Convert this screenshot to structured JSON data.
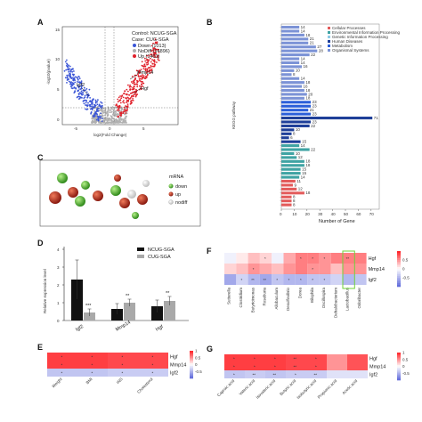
{
  "panel_letters": {
    "A": "A",
    "B": "B",
    "C": "C",
    "D": "D",
    "E": "E",
    "F": "F",
    "G": "G"
  },
  "panelA": {
    "ylabel": "-log10(pvalue)",
    "xlabel": "log2(Fold Change)",
    "legend": {
      "control": "Control: NCUG-SGA",
      "case": "Case:     CUG-SGA",
      "down": "Down (1013)",
      "nodiff": "NoDiff (14896)",
      "up": "Up (1403)"
    },
    "genes": {
      "igf2": "Igf2",
      "mmp14": "Mmp14",
      "hgf": "Hgf"
    },
    "yticks": [
      "0",
      "5",
      "10",
      "15"
    ],
    "xticks": [
      "-5",
      "0",
      "5"
    ],
    "colors": {
      "down": "#3a55d6",
      "nodiff": "#b0b0b0",
      "up": "#e0212b"
    }
  },
  "panelB": {
    "ylabel": "KEGG pathway",
    "xlabel": "Number of Gene",
    "xticks": [
      "0",
      "10",
      "20",
      "30",
      "40",
      "50",
      "60",
      "70"
    ],
    "legend": [
      "Cellular Processes",
      "Environmental Information Processing",
      "Genetic Information Processing",
      "Human Diseases",
      "Metabolism",
      "Organismal Systems"
    ],
    "legend_colors": [
      "#e35b5b",
      "#3fa3a3",
      "#8ecae6",
      "#1f3f99",
      "#2b5fd9",
      "#7c93d6"
    ]
  },
  "chart_data": [
    {
      "type": "bar",
      "title": "",
      "xlabel": "Number of Gene",
      "ylabel": "KEGG pathway",
      "xlim": [
        0,
        75
      ],
      "values": [
        14,
        14,
        18,
        21,
        21,
        27,
        28,
        22,
        14,
        14,
        16,
        10,
        8,
        14,
        18,
        16,
        18,
        20,
        18,
        23,
        23,
        21,
        23,
        71,
        23,
        22,
        10,
        8,
        6,
        15,
        14,
        22,
        10,
        12,
        18,
        18,
        15,
        15,
        14,
        11,
        9,
        12,
        18,
        8,
        8,
        8
      ],
      "colors": [
        "#7c93d6",
        "#7c93d6",
        "#7c93d6",
        "#7c93d6",
        "#7c93d6",
        "#7c93d6",
        "#7c93d6",
        "#7c93d6",
        "#7c93d6",
        "#7c93d6",
        "#7c93d6",
        "#7c93d6",
        "#7c93d6",
        "#7c93d6",
        "#7c93d6",
        "#7c93d6",
        "#7c93d6",
        "#7c93d6",
        "#7c93d6",
        "#2b5fd9",
        "#2b5fd9",
        "#2b5fd9",
        "#2b5fd9",
        "#1f3f99",
        "#1f3f99",
        "#1f3f99",
        "#1f3f99",
        "#1f3f99",
        "#1f3f99",
        "#1f3f99",
        "#3fa3a3",
        "#3fa3a3",
        "#3fa3a3",
        "#3fa3a3",
        "#3fa3a3",
        "#3fa3a3",
        "#3fa3a3",
        "#3fa3a3",
        "#3fa3a3",
        "#e35b5b",
        "#e35b5b",
        "#e35b5b",
        "#e35b5b",
        "#e35b5b",
        "#e35b5b",
        "#e35b5b"
      ]
    },
    {
      "type": "bar",
      "title": "",
      "ylabel": "Relative expression level",
      "categories": [
        "Igf2",
        "Mmp14",
        "Hgf"
      ],
      "ylim": [
        0,
        4
      ],
      "yticks": [
        "0",
        "1",
        "2",
        "3",
        "4"
      ],
      "series": [
        {
          "name": "NCUG-SGA",
          "color": "#111111",
          "values": [
            2.3,
            0.65,
            0.8
          ],
          "errors": [
            1.1,
            0.3,
            0.35
          ]
        },
        {
          "name": "CUG-SGA",
          "color": "#a9a9a9",
          "values": [
            0.45,
            1.0,
            1.1
          ],
          "errors": [
            0.2,
            0.2,
            0.25
          ]
        }
      ],
      "significance": [
        "***",
        "**",
        "**"
      ]
    },
    {
      "type": "heatmap",
      "rows": [
        "Hgf",
        "Mmp14",
        "Igf2"
      ],
      "columns": [
        "Weight",
        "BMI",
        "INS",
        "Cholesterol"
      ],
      "values": [
        [
          0.9,
          0.9,
          0.85,
          0.85
        ],
        [
          0.9,
          0.9,
          0.85,
          0.85
        ],
        [
          -0.4,
          -0.4,
          -0.35,
          -0.35
        ]
      ],
      "stars": [
        [
          "*",
          "*",
          "*",
          "*"
        ],
        [
          "*",
          "*",
          "*",
          "*"
        ],
        [
          "*",
          "*",
          "*",
          "*"
        ]
      ],
      "colorbar_ticks": [
        "1",
        "0.5",
        "0",
        "-0.5"
      ]
    },
    {
      "type": "heatmap",
      "rows": [
        "Hgf",
        "Mmp14",
        "Igf2"
      ],
      "columns": [
        "Sutterella",
        "Clostridium",
        "Butyricimonas",
        "Roseburia",
        "Allobaculum",
        "Desulfovibrio",
        "Dorea",
        "Bilophila",
        "Oscillospira",
        "Dehalobacterium",
        "Lactobacillus",
        "Odoribacter"
      ],
      "values": [
        [
          -0.1,
          0.1,
          0.3,
          0.2,
          -0.1,
          0.4,
          0.6,
          0.6,
          0.5,
          0.6,
          0.6,
          0.6
        ],
        [
          0.2,
          0.3,
          0.5,
          0.4,
          0.3,
          0.5,
          0.6,
          0.5,
          0.5,
          0.3,
          0.5,
          0.5
        ],
        [
          -0.6,
          -0.3,
          -0.5,
          -0.6,
          -0.4,
          -0.5,
          -0.5,
          -0.4,
          -0.4,
          -0.3,
          -0.5,
          -0.4
        ]
      ],
      "stars": [
        [
          "",
          "",
          "",
          "*",
          "",
          "",
          "*",
          "*",
          "*",
          "",
          "**",
          ""
        ],
        [
          "",
          "",
          "*",
          "",
          "",
          "",
          "",
          "*",
          "",
          "",
          "",
          ""
        ],
        [
          "",
          "*",
          "**",
          "**",
          "*",
          "*",
          "*",
          "*",
          "*",
          "",
          "",
          ""
        ]
      ],
      "colorbar_ticks": [
        "0.5",
        "0",
        "-0.5"
      ]
    },
    {
      "type": "heatmap",
      "rows": [
        "Hgf",
        "Mmp14",
        "Igf2"
      ],
      "columns": [
        "Caproic acid",
        "Valeric acid",
        "Isovaleric acid",
        "Butyric acid",
        "Isobutyric acid",
        "Propionic acid",
        "Acetic acid"
      ],
      "values": [
        [
          0.9,
          0.9,
          0.9,
          0.85,
          0.85,
          0.5,
          0.8
        ],
        [
          0.9,
          0.9,
          0.9,
          0.85,
          0.85,
          0.5,
          0.8
        ],
        [
          -0.4,
          -0.35,
          -0.4,
          -0.35,
          -0.35,
          -0.2,
          -0.2
        ]
      ],
      "stars": [
        [
          "*",
          "*",
          "*",
          "**",
          "*",
          "",
          ""
        ],
        [
          "*",
          "*",
          "*",
          "**",
          "*",
          "",
          ""
        ],
        [
          "*",
          "**",
          "**",
          "*",
          "**",
          "",
          ""
        ]
      ],
      "colorbar_ticks": [
        "1",
        "0.5",
        "0",
        "-0.5"
      ]
    }
  ],
  "panelC": {
    "title": "mRNA",
    "legend": [
      "down",
      "up",
      "nodiff"
    ]
  },
  "panelD": {
    "legend": [
      "NCUG-SGA",
      "CUG-SGA"
    ]
  }
}
